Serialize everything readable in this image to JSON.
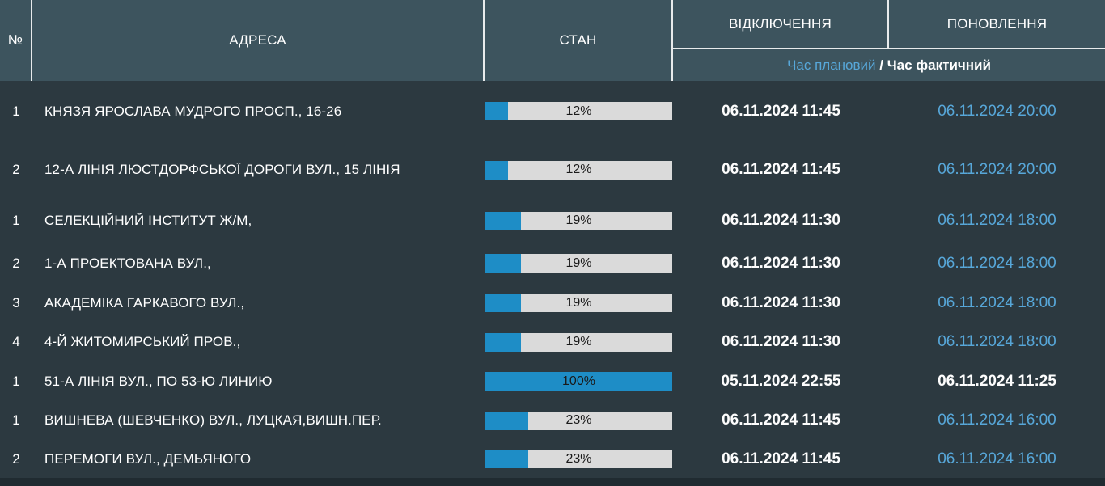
{
  "colors": {
    "header-bg": "#3d545e",
    "body-bg": "#2c3940",
    "strip-bg": "#202b31",
    "line": "#e8ebec",
    "blue-text": "#57a7d9",
    "bar-fill": "#1e8dc6",
    "bar-track": "#dadada",
    "bar-text": "#1a1a1a"
  },
  "columns": {
    "num": "№",
    "address": "АДРЕСА",
    "state": "СТАН",
    "off": "ВІДКЛЮЧЕННЯ",
    "on": "ПОНОВЛЕННЯ"
  },
  "subheader": {
    "planned": "Час плановий",
    "separator": " / ",
    "actual": "Час фактичний"
  },
  "rows": [
    {
      "num": "1",
      "address": "КНЯЗЯ ЯРОСЛАВА МУДРОГО ПРОСП., 16-26",
      "percent": 12,
      "percent_label": "12%",
      "off_time": "06.11.2024 11:45",
      "on_time": "06.11.2024 20:00",
      "on_is_planned": true
    },
    {
      "num": "2",
      "address": "12-А ЛІНІЯ ЛЮСТДОРФСЬКОЇ ДОРОГИ ВУЛ., 15 ЛІНІЯ",
      "percent": 12,
      "percent_label": "12%",
      "off_time": "06.11.2024 11:45",
      "on_time": "06.11.2024 20:00",
      "on_is_planned": true
    },
    {
      "num": "1",
      "address": "СЕЛЕКЦІЙНИЙ ІНСТИТУТ Ж/М,",
      "percent": 19,
      "percent_label": "19%",
      "off_time": "06.11.2024 11:30",
      "on_time": "06.11.2024 18:00",
      "on_is_planned": true
    },
    {
      "num": "2",
      "address": "1-А ПРОЕКТОВАНА ВУЛ.,",
      "percent": 19,
      "percent_label": "19%",
      "off_time": "06.11.2024 11:30",
      "on_time": "06.11.2024 18:00",
      "on_is_planned": true
    },
    {
      "num": "3",
      "address": "АКАДЕМІКА ГАРКАВОГО ВУЛ.,",
      "percent": 19,
      "percent_label": "19%",
      "off_time": "06.11.2024 11:30",
      "on_time": "06.11.2024 18:00",
      "on_is_planned": true
    },
    {
      "num": "4",
      "address": "4-Й ЖИТОМИРСЬКИЙ ПРОВ.,",
      "percent": 19,
      "percent_label": "19%",
      "off_time": "06.11.2024 11:30",
      "on_time": "06.11.2024 18:00",
      "on_is_planned": true
    },
    {
      "num": "1",
      "address": "51-А ЛІНІЯ ВУЛ., ПО 53-Ю ЛИНИЮ",
      "percent": 100,
      "percent_label": "100%",
      "off_time": "05.11.2024 22:55",
      "on_time": "06.11.2024 11:25",
      "on_is_planned": false
    },
    {
      "num": "1",
      "address": "ВИШНЕВА (ШЕВЧЕНКО) ВУЛ., ЛУЦКАЯ,ВИШН.ПЕР.",
      "percent": 23,
      "percent_label": "23%",
      "off_time": "06.11.2024 11:45",
      "on_time": "06.11.2024 16:00",
      "on_is_planned": true
    },
    {
      "num": "2",
      "address": "ПЕРЕМОГИ ВУЛ., ДЕМЬЯНОГО",
      "percent": 23,
      "percent_label": "23%",
      "off_time": "06.11.2024 11:45",
      "on_time": "06.11.2024 16:00",
      "on_is_planned": true
    }
  ]
}
